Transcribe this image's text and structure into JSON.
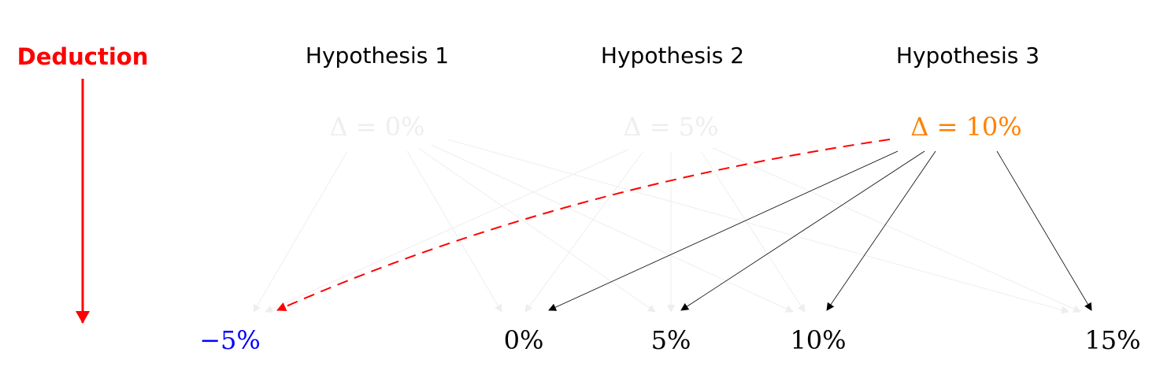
{
  "deduction": {
    "label": "Deduction",
    "color": "#ff0000"
  },
  "hypotheses": [
    {
      "title": "Hypothesis 1",
      "formula": "Δ = 0%",
      "active": false
    },
    {
      "title": "Hypothesis 2",
      "formula": "Δ = 5%",
      "active": false
    },
    {
      "title": "Hypothesis 3",
      "formula": "Δ = 10%",
      "active": true
    }
  ],
  "outcomes": [
    {
      "label": "−5%",
      "highlight": true
    },
    {
      "label": "0%",
      "highlight": false
    },
    {
      "label": "5%",
      "highlight": false
    },
    {
      "label": "10%",
      "highlight": false
    },
    {
      "label": "15%",
      "highlight": false
    }
  ],
  "colors": {
    "active_hypothesis": "#ff8000",
    "inactive": "#eeeeee",
    "highlight_outcome": "#0000ff",
    "dashed_arrow": "#ff0000",
    "arrow": "#000000",
    "text": "#000000"
  },
  "edges": [
    {
      "from": 0,
      "to": 0,
      "style": "faded"
    },
    {
      "from": 0,
      "to": 1,
      "style": "faded"
    },
    {
      "from": 0,
      "to": 2,
      "style": "faded"
    },
    {
      "from": 0,
      "to": 3,
      "style": "faded"
    },
    {
      "from": 0,
      "to": 4,
      "style": "faded"
    },
    {
      "from": 1,
      "to": 0,
      "style": "faded"
    },
    {
      "from": 1,
      "to": 1,
      "style": "faded"
    },
    {
      "from": 1,
      "to": 2,
      "style": "faded"
    },
    {
      "from": 1,
      "to": 3,
      "style": "faded"
    },
    {
      "from": 1,
      "to": 4,
      "style": "faded"
    },
    {
      "from": 2,
      "to": 0,
      "style": "dashed"
    },
    {
      "from": 2,
      "to": 1,
      "style": "solid"
    },
    {
      "from": 2,
      "to": 2,
      "style": "solid"
    },
    {
      "from": 2,
      "to": 3,
      "style": "solid"
    },
    {
      "from": 2,
      "to": 4,
      "style": "solid"
    }
  ]
}
